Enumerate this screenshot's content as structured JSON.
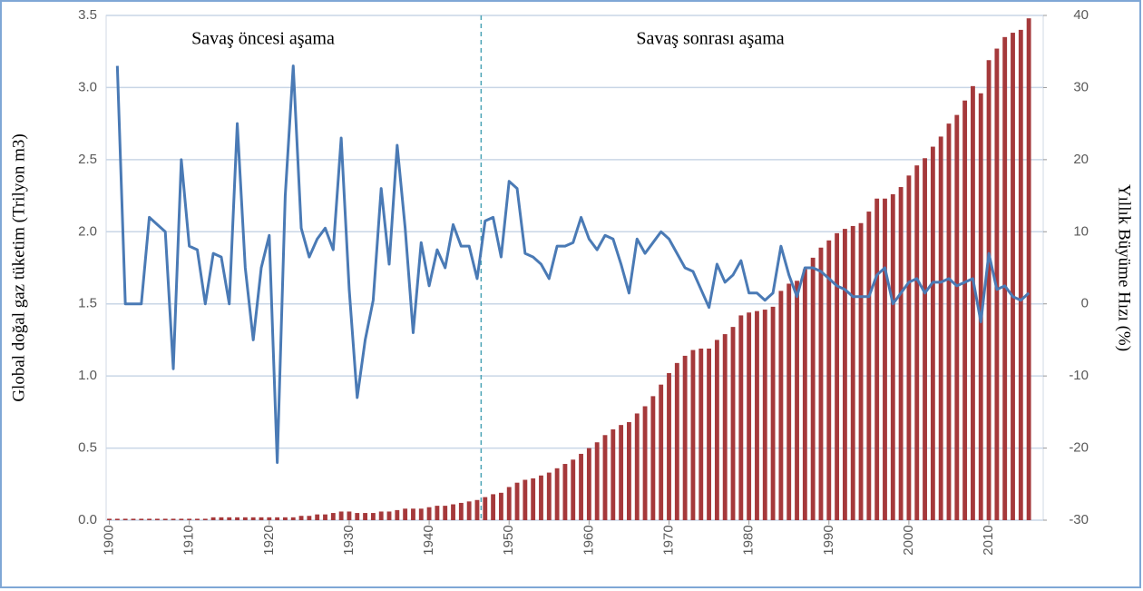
{
  "chart_data": {
    "type": "bar-line",
    "annotations": [
      "Savaş öncesi aşama",
      "Savaş sonrası aşama"
    ],
    "phase_divider_x": 1946.5,
    "y_label": "Global doğal gaz tüketim (Trilyon m3)",
    "y2_label": "Yıllık Büyüme Hızı (%)",
    "x": [
      1900,
      1901,
      1902,
      1903,
      1904,
      1905,
      1906,
      1907,
      1908,
      1909,
      1910,
      1911,
      1912,
      1913,
      1914,
      1915,
      1916,
      1917,
      1918,
      1919,
      1920,
      1921,
      1922,
      1923,
      1924,
      1925,
      1926,
      1927,
      1928,
      1929,
      1930,
      1931,
      1932,
      1933,
      1934,
      1935,
      1936,
      1937,
      1938,
      1939,
      1940,
      1941,
      1942,
      1943,
      1944,
      1945,
      1946,
      1947,
      1948,
      1949,
      1950,
      1951,
      1952,
      1953,
      1954,
      1955,
      1956,
      1957,
      1958,
      1959,
      1960,
      1961,
      1962,
      1963,
      1964,
      1965,
      1966,
      1967,
      1968,
      1969,
      1970,
      1971,
      1972,
      1973,
      1974,
      1975,
      1976,
      1977,
      1978,
      1979,
      1980,
      1981,
      1982,
      1983,
      1984,
      1985,
      1986,
      1987,
      1988,
      1989,
      1990,
      1991,
      1992,
      1993,
      1994,
      1995,
      1996,
      1997,
      1998,
      1999,
      2000,
      2001,
      2002,
      2003,
      2004,
      2005,
      2006,
      2007,
      2008,
      2009,
      2010,
      2011,
      2012,
      2013,
      2014,
      2015
    ],
    "series": [
      {
        "kind": "bar",
        "color": "#a5393b",
        "values": [
          0.01,
          0.01,
          0.01,
          0.01,
          0.01,
          0.01,
          0.01,
          0.01,
          0.01,
          0.01,
          0.01,
          0.01,
          0.01,
          0.02,
          0.02,
          0.02,
          0.02,
          0.02,
          0.02,
          0.02,
          0.02,
          0.02,
          0.02,
          0.02,
          0.03,
          0.03,
          0.04,
          0.04,
          0.05,
          0.06,
          0.06,
          0.05,
          0.05,
          0.05,
          0.06,
          0.06,
          0.07,
          0.08,
          0.08,
          0.08,
          0.09,
          0.1,
          0.1,
          0.11,
          0.12,
          0.13,
          0.14,
          0.16,
          0.18,
          0.19,
          0.23,
          0.26,
          0.28,
          0.29,
          0.31,
          0.33,
          0.36,
          0.39,
          0.42,
          0.46,
          0.5,
          0.54,
          0.59,
          0.63,
          0.66,
          0.68,
          0.74,
          0.79,
          0.86,
          0.94,
          1.02,
          1.09,
          1.14,
          1.18,
          1.19,
          1.19,
          1.25,
          1.29,
          1.34,
          1.42,
          1.44,
          1.45,
          1.46,
          1.48,
          1.59,
          1.64,
          1.66,
          1.74,
          1.82,
          1.89,
          1.94,
          1.99,
          2.02,
          2.04,
          2.06,
          2.14,
          2.23,
          2.23,
          2.26,
          2.31,
          2.39,
          2.46,
          2.51,
          2.59,
          2.66,
          2.75,
          2.81,
          2.91,
          3.01,
          2.96,
          3.19,
          3.27,
          3.35,
          3.38,
          3.4,
          3.48
        ]
      },
      {
        "kind": "line",
        "axis": "y2",
        "color": "#4a7ab5",
        "values": [
          null,
          33,
          0,
          0,
          0,
          12,
          11,
          10,
          -9,
          20,
          8,
          7.5,
          0,
          7,
          6.5,
          0,
          25,
          5,
          -5,
          5,
          9.5,
          -22,
          15,
          33,
          10.5,
          6.5,
          9,
          10.5,
          7.5,
          23,
          2,
          -13,
          -5,
          0.5,
          16,
          5.5,
          22,
          10.5,
          -4,
          8.5,
          2.5,
          7.5,
          5,
          11,
          8,
          8,
          3.5,
          11.5,
          12,
          6.5,
          17,
          16,
          7,
          6.5,
          5.5,
          3.5,
          8,
          8,
          8.5,
          12,
          9,
          7.5,
          9.5,
          9,
          5.5,
          1.5,
          9,
          7,
          8.5,
          10,
          9,
          7,
          5,
          4.5,
          2,
          -0.5,
          5.5,
          3,
          4,
          6,
          1.5,
          1.5,
          0.5,
          1.5,
          8,
          4,
          1,
          5,
          5,
          4.5,
          3.5,
          2.5,
          2,
          1,
          1,
          1,
          4,
          5,
          0,
          1.5,
          3,
          3.5,
          1.5,
          3,
          3,
          3.5,
          2.5,
          3,
          3.5,
          -2.5,
          7,
          2,
          2.5,
          1,
          0.5,
          1.5
        ]
      }
    ],
    "xlim": [
      1899.6,
      2016.8
    ],
    "xticks": [
      1900,
      1910,
      1920,
      1930,
      1940,
      1950,
      1960,
      1970,
      1980,
      1990,
      2000,
      2010
    ],
    "ylim": [
      0,
      3.5
    ],
    "yticks": [
      {
        "value": 0,
        "label": "0.0"
      },
      0.5,
      {
        "value": 1,
        "label": "1.0"
      },
      1.5,
      {
        "value": 2,
        "label": "2.0"
      },
      2.5,
      {
        "value": 3,
        "label": "3.0"
      },
      3.5
    ],
    "y2lim": [
      -30,
      40
    ],
    "y2ticks": [
      -30,
      -20,
      -10,
      0,
      10,
      20,
      30,
      40
    ],
    "grid": true
  }
}
